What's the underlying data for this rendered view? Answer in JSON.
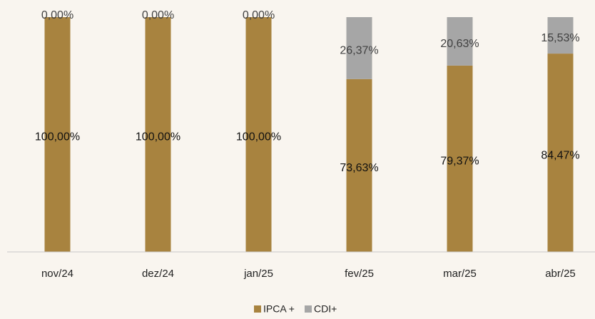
{
  "chart_data": {
    "type": "stacked_bar",
    "categories": [
      "nov/24",
      "dez/24",
      "jan/25",
      "fev/25",
      "mar/25",
      "abr/25"
    ],
    "series": [
      {
        "name": "IPCA +",
        "color": "#a8833f",
        "values": [
          100,
          100,
          100,
          73.63,
          79.37,
          84.47
        ],
        "value_labels": [
          "100,00%",
          "100,00%",
          "100,00%",
          "73,63%",
          "79,37%",
          "84,47%"
        ]
      },
      {
        "name": "CDI+",
        "color": "#a6a6a6",
        "values": [
          0,
          0,
          0,
          26.37,
          20.63,
          15.53
        ],
        "value_labels": [
          "0,00%",
          "0,00%",
          "0,00%",
          "26,37%",
          "20,63%",
          "15,53%"
        ]
      }
    ],
    "ylim": [
      0,
      100
    ],
    "legend": "bottom"
  }
}
